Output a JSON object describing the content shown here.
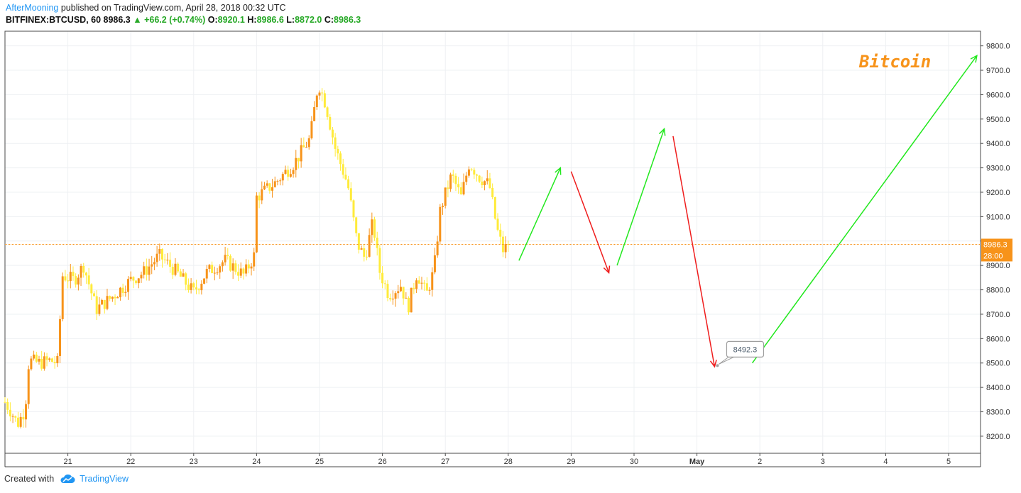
{
  "header": {
    "author": "AfterMooning",
    "published": "published on TradingView.com, April 28, 2018 00:32 UTC",
    "symbol": "BITFINEX:BTCUSD, 60",
    "last": "8986.3",
    "arrow": "▲",
    "change": "+66.2 (+0.74%)",
    "o_label": "O:",
    "o_value": "8920.1",
    "h_label": "H:",
    "h_value": "8986.6",
    "l_label": "L:",
    "l_value": "8872.0",
    "c_label": "C:",
    "c_value": "8986.3"
  },
  "footer": {
    "created_with": "Created with",
    "brand": "TradingView",
    "logo_icon": "tradingview-cloud-icon"
  },
  "chart_data": {
    "type": "candlestick",
    "title": "Bitcoin",
    "title_color": "#f7931a",
    "ylim": [
      8130,
      9860
    ],
    "y_ticks": [
      "9800.0",
      "9700.0",
      "9600.0",
      "9500.0",
      "9400.0",
      "9300.0",
      "9200.0",
      "9100.0",
      "9000.0",
      "8900.0",
      "8800.0",
      "8700.0",
      "8600.0",
      "8500.0",
      "8400.0",
      "8300.0",
      "8200.0"
    ],
    "x_ticks": [
      {
        "label": "21",
        "day": 1
      },
      {
        "label": "22",
        "day": 2
      },
      {
        "label": "23",
        "day": 3
      },
      {
        "label": "24",
        "day": 4
      },
      {
        "label": "25",
        "day": 5
      },
      {
        "label": "26",
        "day": 6
      },
      {
        "label": "27",
        "day": 7
      },
      {
        "label": "28",
        "day": 8
      },
      {
        "label": "29",
        "day": 9
      },
      {
        "label": "30",
        "day": 10
      },
      {
        "label": "May",
        "day": 11,
        "bold": true
      },
      {
        "label": "2",
        "day": 12
      },
      {
        "label": "3",
        "day": 13
      },
      {
        "label": "4",
        "day": 14
      },
      {
        "label": "5",
        "day": 15
      }
    ],
    "price_line": {
      "value": 8986.3,
      "label": "8986.3",
      "countdown": "28:00",
      "color": "#f7931a"
    },
    "up_color": "#f7931a",
    "down_color": "#ffeb3b",
    "close_path": [
      {
        "day": 0.0,
        "price": 8340
      },
      {
        "day": 0.1,
        "price": 8300
      },
      {
        "day": 0.2,
        "price": 8250
      },
      {
        "day": 0.32,
        "price": 8310
      },
      {
        "day": 0.38,
        "price": 8510
      },
      {
        "day": 0.55,
        "price": 8500
      },
      {
        "day": 0.72,
        "price": 8510
      },
      {
        "day": 0.85,
        "price": 8500
      },
      {
        "day": 0.9,
        "price": 8860
      },
      {
        "day": 1.1,
        "price": 8840
      },
      {
        "day": 1.25,
        "price": 8900
      },
      {
        "day": 1.45,
        "price": 8720
      },
      {
        "day": 1.7,
        "price": 8770
      },
      {
        "day": 2.0,
        "price": 8840
      },
      {
        "day": 2.2,
        "price": 8870
      },
      {
        "day": 2.45,
        "price": 8940
      },
      {
        "day": 2.7,
        "price": 8880
      },
      {
        "day": 3.0,
        "price": 8790
      },
      {
        "day": 3.2,
        "price": 8870
      },
      {
        "day": 3.5,
        "price": 8920
      },
      {
        "day": 3.8,
        "price": 8860
      },
      {
        "day": 3.98,
        "price": 8950
      },
      {
        "day": 4.0,
        "price": 9180
      },
      {
        "day": 4.3,
        "price": 9240
      },
      {
        "day": 4.6,
        "price": 9320
      },
      {
        "day": 4.85,
        "price": 9420
      },
      {
        "day": 4.98,
        "price": 9650
      },
      {
        "day": 5.1,
        "price": 9560
      },
      {
        "day": 5.25,
        "price": 9380
      },
      {
        "day": 5.45,
        "price": 9230
      },
      {
        "day": 5.6,
        "price": 8990
      },
      {
        "day": 5.72,
        "price": 8930
      },
      {
        "day": 5.85,
        "price": 9080
      },
      {
        "day": 5.95,
        "price": 8880
      },
      {
        "day": 6.1,
        "price": 8780
      },
      {
        "day": 6.3,
        "price": 8820
      },
      {
        "day": 6.4,
        "price": 8720
      },
      {
        "day": 6.55,
        "price": 8870
      },
      {
        "day": 6.7,
        "price": 8780
      },
      {
        "day": 6.82,
        "price": 8880
      },
      {
        "day": 6.92,
        "price": 9130
      },
      {
        "day": 7.1,
        "price": 9270
      },
      {
        "day": 7.25,
        "price": 9180
      },
      {
        "day": 7.38,
        "price": 9320
      },
      {
        "day": 7.55,
        "price": 9260
      },
      {
        "day": 7.7,
        "price": 9230
      },
      {
        "day": 7.82,
        "price": 9050
      },
      {
        "day": 7.92,
        "price": 8960
      },
      {
        "day": 8.0,
        "price": 8986
      }
    ],
    "arrows": [
      {
        "color": "#22e81e",
        "from": {
          "day": 8.17,
          "price": 8920
        },
        "to": {
          "day": 8.83,
          "price": 9300
        }
      },
      {
        "color": "#ef1d1d",
        "from": {
          "day": 9.0,
          "price": 9285
        },
        "to": {
          "day": 9.6,
          "price": 8870
        }
      },
      {
        "color": "#22e81e",
        "from": {
          "day": 9.73,
          "price": 8900
        },
        "to": {
          "day": 10.48,
          "price": 9460
        }
      },
      {
        "color": "#ef1d1d",
        "from": {
          "day": 10.62,
          "price": 9430
        },
        "to": {
          "day": 11.28,
          "price": 8485
        }
      },
      {
        "color": "#22e81e",
        "from": {
          "day": 11.88,
          "price": 8500
        },
        "to": {
          "day": 15.45,
          "price": 9760
        }
      }
    ],
    "callout": {
      "label": "8492.3",
      "day": 11.45,
      "price": 8492.3
    }
  }
}
